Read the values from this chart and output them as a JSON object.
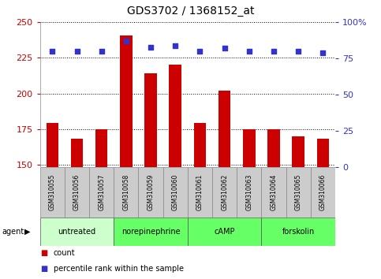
{
  "title": "GDS3702 / 1368152_at",
  "samples": [
    "GSM310055",
    "GSM310056",
    "GSM310057",
    "GSM310058",
    "GSM310059",
    "GSM310060",
    "GSM310061",
    "GSM310062",
    "GSM310063",
    "GSM310064",
    "GSM310065",
    "GSM310066"
  ],
  "counts": [
    179,
    168,
    175,
    241,
    214,
    220,
    179,
    202,
    175,
    175,
    170,
    168
  ],
  "percentiles": [
    80,
    80,
    80,
    87,
    83,
    84,
    80,
    82,
    80,
    80,
    80,
    79
  ],
  "groups": [
    {
      "label": "untreated",
      "start": 0,
      "end": 3
    },
    {
      "label": "norepinephrine",
      "start": 3,
      "end": 6
    },
    {
      "label": "cAMP",
      "start": 6,
      "end": 9
    },
    {
      "label": "forskolin",
      "start": 9,
      "end": 12
    }
  ],
  "group_colors": [
    "#ccffcc",
    "#66ff66",
    "#66ff66",
    "#66ff66"
  ],
  "ylim_left": [
    148,
    250
  ],
  "ylim_right": [
    0,
    100
  ],
  "yticks_left": [
    150,
    175,
    200,
    225,
    250
  ],
  "yticks_right": [
    0,
    25,
    50,
    75,
    100
  ],
  "bar_color": "#cc0000",
  "dot_color": "#3333cc",
  "bar_width": 0.5,
  "bg_color": "#ffffff",
  "sample_area_color": "#cccccc",
  "figsize": [
    4.83,
    3.54
  ],
  "dpi": 100
}
